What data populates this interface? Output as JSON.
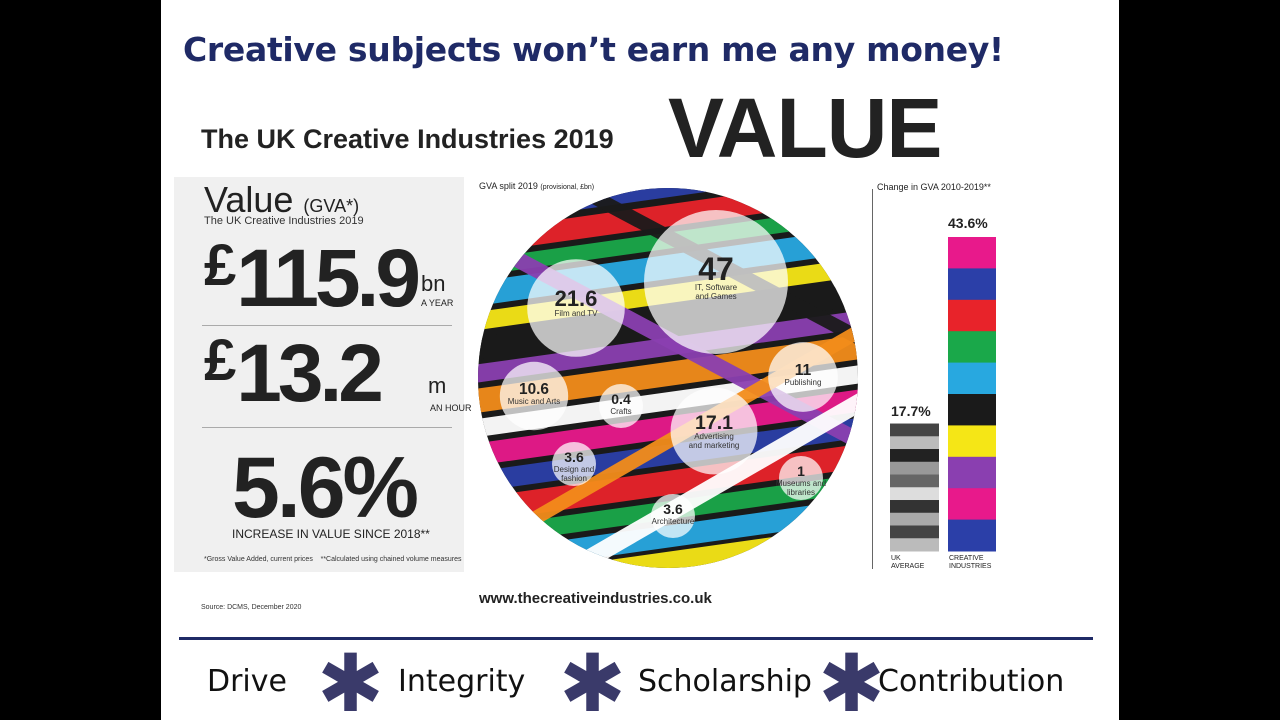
{
  "slide": {
    "heading": "Creative subjects won’t earn me any money!",
    "subtitle": "The UK Creative Industries 2019",
    "value_word": "VALUE"
  },
  "value_panel": {
    "title": "Value",
    "title_suffix": "(GVA*)",
    "subtitle": "The UK Creative Industries 2019",
    "stat1": {
      "currency": "£",
      "number": "115.9",
      "unit": "bn",
      "unit_sub": "A YEAR"
    },
    "stat2": {
      "currency": "£",
      "number": "13.2",
      "unit": "m",
      "unit_sub": "AN HOUR"
    },
    "stat3": {
      "number": "5.6%",
      "label": "INCREASE IN VALUE SINCE 2018**"
    },
    "footnote1": "*Gross Value Added, current prices",
    "footnote2": "**Calculated using chained volume measures"
  },
  "source": "Source: DCMS, December 2020",
  "website": "www.thecreativeindustries.co.uk",
  "chart_data": [
    {
      "type": "bubble",
      "title": "GVA split 2019",
      "title_note": "(provisional, £bn)",
      "points": [
        {
          "label": "IT, Software and Games",
          "value": 47
        },
        {
          "label": "Film and TV",
          "value": 21.6
        },
        {
          "label": "Advertising and marketing",
          "value": 17.1
        },
        {
          "label": "Publishing",
          "value": 11
        },
        {
          "label": "Music and Arts",
          "value": 10.6
        },
        {
          "label": "Design and fashion",
          "value": 3.6
        },
        {
          "label": "Architecture",
          "value": 3.6
        },
        {
          "label": "Museums and libraries",
          "value": 1
        },
        {
          "label": "Crafts",
          "value": 0.4
        }
      ]
    },
    {
      "type": "bar",
      "title": "Change in GVA  2010-2019**",
      "categories": [
        "UK AVERAGE",
        "CREATIVE INDUSTRIES"
      ],
      "values": [
        17.7,
        43.6
      ],
      "value_labels": [
        "17.7%",
        "43.6%"
      ],
      "ylim": [
        0,
        43.6
      ]
    }
  ],
  "footer": {
    "mottos": [
      "Drive",
      "Integrity",
      "Scholarship",
      "Contribution"
    ],
    "separator_icon": "star-icon",
    "line_color": "#1f2a66"
  }
}
